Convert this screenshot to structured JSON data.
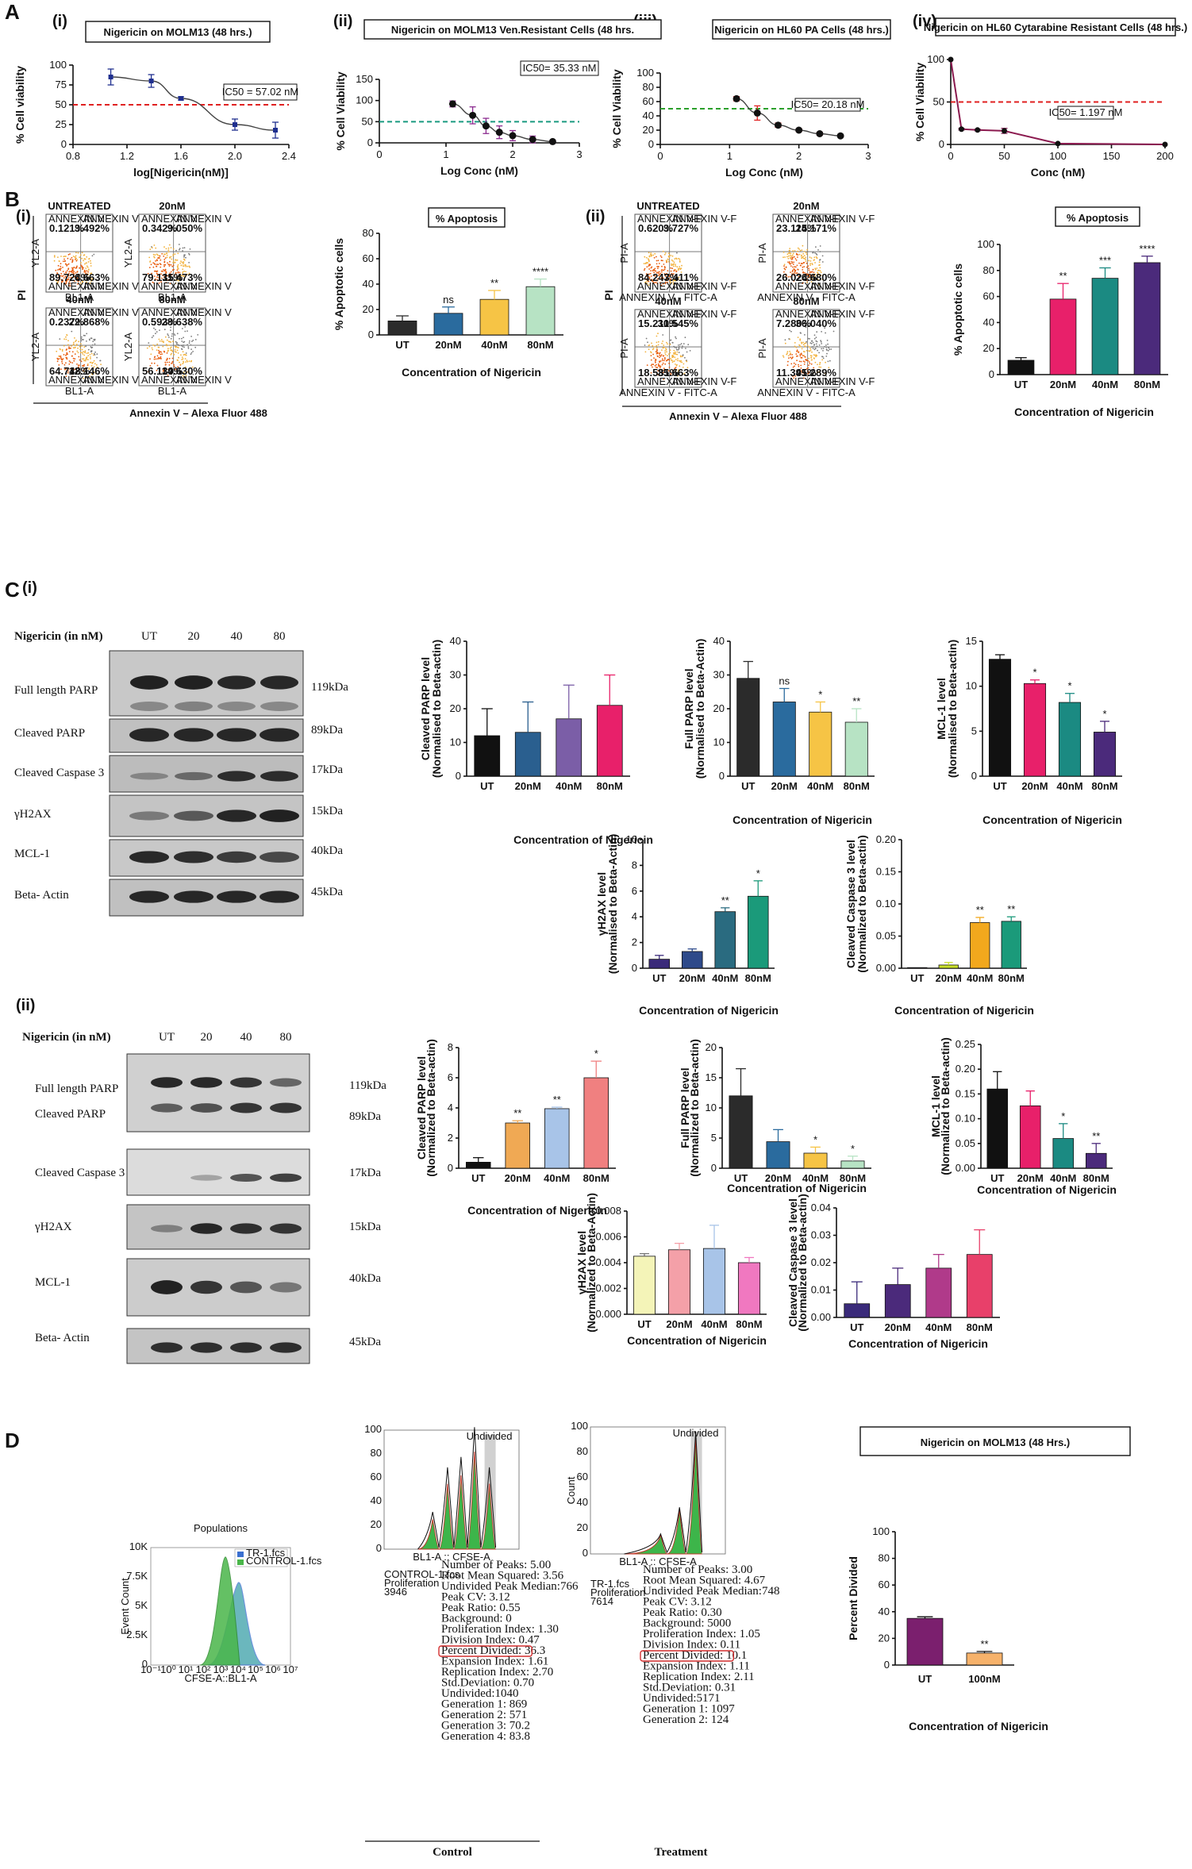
{
  "panel_letters": {
    "A": "A",
    "B": "B",
    "C": "C",
    "D": "D"
  },
  "panel_roman": {
    "a1": "(i)",
    "a2": "(ii)",
    "a3": "(iii)",
    "a4": "(iv)",
    "b1": "(i)",
    "b2": "(ii)",
    "c1": "(i)",
    "c2": "(ii)"
  },
  "chart_data": [
    {
      "id": "A_i",
      "type": "line",
      "title": "Nigericin on MOLM13 (48 hrs.)",
      "title_color": "#1f2f8f",
      "xlabel": "log[Nigericin(nM)]",
      "ylabel": "% Cell viability",
      "xlim": [
        0.8,
        2.4
      ],
      "ylim": [
        0,
        100
      ],
      "xticks": [
        "0.8",
        "1.2",
        "1.6",
        "2.0",
        "2.4"
      ],
      "yticks": [
        "0",
        "25",
        "50",
        "75",
        "100"
      ],
      "annotation": "IC50 = 57.02 nM",
      "threshold": 50,
      "threshold_color": "#e02020",
      "x": [
        1.08,
        1.38,
        1.6,
        2.0,
        2.3
      ],
      "y": [
        85,
        80,
        58,
        25,
        18
      ],
      "err": [
        10,
        8,
        2,
        7,
        10
      ]
    },
    {
      "id": "A_ii",
      "type": "line",
      "title": "Nigericin on MOLM13 Ven.Resistant Cells (48 hrs.",
      "title_color": "#8b2a8f",
      "xlabel": "Log Conc (nM)",
      "ylabel": "% Cell Viability",
      "xlim": [
        0,
        3
      ],
      "ylim": [
        0,
        150
      ],
      "xticks": [
        "0",
        "1",
        "2",
        "3"
      ],
      "yticks": [
        "0",
        "50",
        "100",
        "150"
      ],
      "annotation": "IC50= 35.33 nM",
      "threshold": 50,
      "threshold_color": "#1a9a80",
      "x": [
        1.1,
        1.4,
        1.6,
        1.8,
        2.0,
        2.3,
        2.6
      ],
      "y": [
        92,
        65,
        40,
        25,
        17,
        8,
        3
      ],
      "err": [
        7,
        20,
        18,
        15,
        12,
        8,
        3
      ]
    },
    {
      "id": "A_iii",
      "type": "line",
      "title": "Nigericin on HL60 PA Cells (48 hrs.)",
      "title_color": "#e02020",
      "xlabel": "Log Conc (nM)",
      "ylabel": "% Cell Viability",
      "xlim": [
        0,
        3
      ],
      "ylim": [
        0,
        100
      ],
      "xticks": [
        "0",
        "1",
        "2",
        "3"
      ],
      "yticks": [
        "0",
        "20",
        "40",
        "60",
        "80",
        "100"
      ],
      "annotation": "IC50= 20.18 nM",
      "threshold": 50,
      "threshold_color": "#2ca02c",
      "x": [
        1.1,
        1.4,
        1.7,
        2.0,
        2.3,
        2.6
      ],
      "y": [
        64,
        44,
        27,
        20,
        15,
        12
      ],
      "err": [
        3,
        10,
        3,
        2,
        2,
        1
      ]
    },
    {
      "id": "A_iv",
      "type": "line",
      "title": "Nigericin on HL60 Cytarabine Resistant Cells (48 hrs.)",
      "title_color": "#c2185b",
      "xlabel": "Conc (nM)",
      "ylabel": "% Cell Viability",
      "xlim": [
        0,
        200
      ],
      "ylim": [
        0,
        100
      ],
      "xticks": [
        "0",
        "50",
        "100",
        "150",
        "200"
      ],
      "yticks": [
        "0",
        "50",
        "100"
      ],
      "annotation": "IC50= 1.197 nM",
      "threshold": 50,
      "threshold_color": "#e02020",
      "x": [
        0,
        10,
        25,
        50,
        100,
        200
      ],
      "y": [
        100,
        18,
        17,
        16,
        1,
        0
      ],
      "err": [
        0,
        1,
        1,
        3,
        0,
        0
      ]
    },
    {
      "id": "B_i",
      "type": "bar",
      "title": "% Apoptosis",
      "xlabel": "Concentration of Nigericin",
      "ylabel": "% Apoptotic cells",
      "categories": [
        "UT",
        "20nM",
        "40nM",
        "80nM"
      ],
      "values": [
        11,
        17,
        28,
        38
      ],
      "err": [
        4,
        5,
        7,
        6
      ],
      "sig": [
        "",
        "ns",
        "**",
        "****"
      ],
      "colors": [
        "#2b2b2b",
        "#2a6b9e",
        "#f6c445",
        "#b7e3c4"
      ],
      "ylim": [
        0,
        80
      ],
      "yticks": [
        "0",
        "20",
        "40",
        "60",
        "80"
      ]
    },
    {
      "id": "B_ii",
      "type": "bar",
      "title": "% Apoptosis",
      "xlabel": "Concentration of Nigericin",
      "ylabel": "% Apoptotic cells",
      "categories": [
        "UT",
        "20nM",
        "40nM",
        "80nM"
      ],
      "values": [
        11,
        58,
        74,
        86
      ],
      "err": [
        2,
        12,
        8,
        5
      ],
      "sig": [
        "",
        "**",
        "***",
        "****"
      ],
      "colors": [
        "#111111",
        "#e8206a",
        "#1b8a82",
        "#4b2a7b"
      ],
      "ylim": [
        0,
        100
      ],
      "yticks": [
        "0",
        "20",
        "40",
        "60",
        "80",
        "100"
      ]
    },
    {
      "id": "C_i_1",
      "type": "bar",
      "ylabel": "Cleaved PARP level\n(Normalised to Beta-actin)",
      "xlabel": "Concentration of Nigericin",
      "categories": [
        "UT",
        "20nM",
        "40nM",
        "80nM"
      ],
      "values": [
        12,
        13,
        17,
        21
      ],
      "err": [
        8,
        9,
        10,
        9
      ],
      "sig": [
        "",
        "",
        "",
        ""
      ],
      "colors": [
        "#111111",
        "#2a5f8f",
        "#7b5ea7",
        "#e8206a"
      ],
      "ylim": [
        0,
        40
      ],
      "yticks": [
        "0",
        "10",
        "20",
        "30",
        "40"
      ]
    },
    {
      "id": "C_i_2",
      "type": "bar",
      "ylabel": "Full PARP level\n(Normalised to Beta-Actin)",
      "xlabel": "Concentration of Nigericin",
      "categories": [
        "UT",
        "20nM",
        "40nM",
        "80nM"
      ],
      "values": [
        29,
        22,
        19,
        16
      ],
      "err": [
        5,
        4,
        3,
        4
      ],
      "sig": [
        "",
        "ns",
        "*",
        "**"
      ],
      "colors": [
        "#2b2b2b",
        "#2a6b9e",
        "#f6c445",
        "#b7e3c4"
      ],
      "ylim": [
        0,
        40
      ],
      "yticks": [
        "0",
        "10",
        "20",
        "30",
        "40"
      ]
    },
    {
      "id": "C_i_3",
      "type": "bar",
      "ylabel": "MCL-1 level\n(Normalised to Beta-actin)",
      "xlabel": "Concentration of Nigericin",
      "categories": [
        "UT",
        "20nM",
        "40nM",
        "80nM"
      ],
      "values": [
        13,
        10.3,
        8.2,
        4.9
      ],
      "err": [
        0.5,
        0.4,
        1,
        1.2
      ],
      "sig": [
        "",
        "*",
        "*",
        "*"
      ],
      "colors": [
        "#111111",
        "#e8206a",
        "#1b8a82",
        "#4b2a7b"
      ],
      "ylim": [
        0,
        15
      ],
      "yticks": [
        "0",
        "5",
        "10",
        "15"
      ]
    },
    {
      "id": "C_i_4",
      "type": "bar",
      "ylabel": "γH2AX level\n(Normalised to Beta-Actin)",
      "xlabel": "Concentration of Nigericin",
      "categories": [
        "UT",
        "20nM",
        "40nM",
        "80nM"
      ],
      "values": [
        0.7,
        1.3,
        4.4,
        5.6
      ],
      "err": [
        0.3,
        0.2,
        0.3,
        1.2
      ],
      "sig": [
        "",
        "",
        "**",
        "*"
      ],
      "colors": [
        "#3a2a7a",
        "#2e4a8a",
        "#2a6b80",
        "#1b9a7a"
      ],
      "ylim": [
        0,
        10
      ],
      "yticks": [
        "0",
        "2",
        "4",
        "6",
        "8",
        "10"
      ]
    },
    {
      "id": "C_i_5",
      "type": "bar",
      "ylabel": "Cleaved Caspase 3 level\n(Normalized to Beta-actin)",
      "xlabel": "Concentration of Nigericin",
      "categories": [
        "UT",
        "20nM",
        "40nM",
        "80nM"
      ],
      "values": [
        0.001,
        0.005,
        0.071,
        0.073
      ],
      "err": [
        0,
        0.004,
        0.008,
        0.007
      ],
      "sig": [
        "",
        "",
        "**",
        "**"
      ],
      "colors": [
        "#3a2a7a",
        "#c9e02a",
        "#f2a81d",
        "#1b9a7a"
      ],
      "ylim": [
        0,
        0.2
      ],
      "yticks": [
        "0.00",
        "0.05",
        "0.10",
        "0.15",
        "0.20"
      ]
    },
    {
      "id": "C_ii_1",
      "type": "bar",
      "ylabel": "Cleaved PARP level\n(Normalized to Beta-actin)",
      "xlabel": "Concentration of Nigericin",
      "categories": [
        "UT",
        "20nM",
        "40nM",
        "80nM"
      ],
      "values": [
        0.4,
        3.0,
        3.95,
        6.0
      ],
      "err": [
        0.3,
        0.15,
        0.1,
        1.1
      ],
      "sig": [
        "",
        "**",
        "**",
        "*"
      ],
      "colors": [
        "#111111",
        "#f0a954",
        "#a8c4e8",
        "#f08080"
      ],
      "ylim": [
        0,
        8
      ],
      "yticks": [
        "0",
        "2",
        "4",
        "6",
        "8"
      ]
    },
    {
      "id": "C_ii_2",
      "type": "bar",
      "ylabel": "Full PARP level\n(Normalized to Beta-actin)",
      "xlabel": "Concentration of Nigericin",
      "categories": [
        "UT",
        "20nM",
        "40nM",
        "80nM"
      ],
      "values": [
        12,
        4.4,
        2.5,
        1.2
      ],
      "err": [
        4.5,
        2,
        1,
        0.8
      ],
      "sig": [
        "",
        "",
        "*",
        "*"
      ],
      "colors": [
        "#2b2b2b",
        "#2a6b9e",
        "#f6c445",
        "#b7e3c4"
      ],
      "ylim": [
        0,
        20
      ],
      "yticks": [
        "0",
        "5",
        "10",
        "15",
        "20"
      ]
    },
    {
      "id": "C_ii_3",
      "type": "bar",
      "ylabel": "MCL-1 level\n(Normalized to Beta-actin)",
      "xlabel": "Concentration of Nigericin",
      "categories": [
        "UT",
        "20nM",
        "40nM",
        "80nM"
      ],
      "values": [
        0.16,
        0.126,
        0.06,
        0.03
      ],
      "err": [
        0.035,
        0.03,
        0.03,
        0.02
      ],
      "sig": [
        "",
        "",
        "*",
        "**"
      ],
      "colors": [
        "#111111",
        "#e8206a",
        "#1b8a82",
        "#4b2a7b"
      ],
      "ylim": [
        0,
        0.25
      ],
      "yticks": [
        "0.00",
        "0.05",
        "0.10",
        "0.15",
        "0.20",
        "0.25"
      ]
    },
    {
      "id": "C_ii_4",
      "type": "bar",
      "ylabel": "γH2AX level\n(Normalized to Beta-Actin)",
      "xlabel": "Concentration of Nigericin",
      "categories": [
        "UT",
        "20nM",
        "40nM",
        "80nM"
      ],
      "values": [
        0.0045,
        0.005,
        0.0051,
        0.004
      ],
      "err": [
        0.0002,
        0.0005,
        0.0018,
        0.0004
      ],
      "sig": [
        "",
        "",
        "",
        ""
      ],
      "colors": [
        "#f4f4b8",
        "#f4a0a8",
        "#a8c4e8",
        "#f078c0"
      ],
      "ylim": [
        0,
        0.008
      ],
      "yticks": [
        "0.000",
        "0.002",
        "0.004",
        "0.006",
        "0.008"
      ]
    },
    {
      "id": "C_ii_5",
      "type": "bar",
      "ylabel": "Cleaved Caspase 3 level\n(Normalized to Beta-actin)",
      "xlabel": "Concentration of Nigericin",
      "categories": [
        "UT",
        "20nM",
        "40nM",
        "80nM"
      ],
      "values": [
        0.005,
        0.012,
        0.018,
        0.023
      ],
      "err": [
        0.008,
        0.006,
        0.005,
        0.009
      ],
      "sig": [
        "",
        "",
        "",
        ""
      ],
      "colors": [
        "#3a2a7a",
        "#4b2a7b",
        "#b03a8a",
        "#e8406a"
      ],
      "ylim": [
        0,
        0.04
      ],
      "yticks": [
        "0.00",
        "0.01",
        "0.02",
        "0.03",
        "0.04"
      ]
    },
    {
      "id": "D_bar",
      "type": "bar",
      "title": "Nigericin on MOLM13 (48 Hrs.)",
      "xlabel": "Concentration of Nigericin",
      "ylabel": "Percent Divided",
      "categories": [
        "UT",
        "100nM"
      ],
      "values": [
        35,
        9
      ],
      "err": [
        1.2,
        1.2
      ],
      "sig": [
        "",
        "**"
      ],
      "colors": [
        "#7b1f6e",
        "#f6b26b"
      ],
      "ylim": [
        0,
        100
      ],
      "yticks": [
        "0",
        "20",
        "40",
        "60",
        "80",
        "100"
      ]
    }
  ],
  "flow_b1": {
    "plots": [
      {
        "title": "UNTREATED",
        "q": [
          "0.121%",
          "3.492%",
          "89.724%",
          "6.663%"
        ]
      },
      {
        "title": "20nM",
        "q": [
          "0.342%",
          "9.050%",
          "79.135%",
          "11.473%"
        ]
      },
      {
        "title": "40nM",
        "q": [
          "0.237%",
          "22.868%",
          "64.748%",
          "12.146%"
        ]
      },
      {
        "title": "80nM",
        "q": [
          "0.593%",
          "28.638%",
          "56.139%",
          "14.630%"
        ]
      }
    ],
    "qlabel": "ANNEXIN V",
    "y_axis": "PI",
    "x_axis": "Annexin V – Alexa Fluor 488",
    "ylab": "YL2-A",
    "xlab": "BL1-A"
  },
  "flow_b2": {
    "plots": [
      {
        "title": "UNTREATED",
        "q": [
          "0.620%",
          "3.727%",
          "84.243%",
          "7.411%"
        ]
      },
      {
        "title": "20nM",
        "q": [
          "23.115%",
          "24.171%",
          "26.024%",
          "26.680%"
        ]
      },
      {
        "title": "40nM",
        "q": [
          "15.211%",
          "30.545%",
          "18.581%",
          "35.663%"
        ]
      },
      {
        "title": "80nM",
        "q": [
          "7.280%",
          "36.040%",
          "11.391%",
          "45.289%"
        ]
      }
    ],
    "qlabel": "ANNEXIN V-F",
    "y_axis": "PI",
    "x_axis": "Annexin V – Alexa Fluor 488",
    "ylab": "PI-A",
    "xlab": "ANNEXIN V - FITC-A"
  },
  "blot_c1": {
    "header": "Nigericin (in nM)",
    "lanes": [
      "UT",
      "20",
      "40",
      "80"
    ],
    "rows": [
      {
        "label": "Full length PARP",
        "kda": "119kDa"
      },
      {
        "label": "Cleaved PARP",
        "kda": "89kDa"
      },
      {
        "label": "Cleaved Caspase 3",
        "kda": "17kDa"
      },
      {
        "label": "γH2AX",
        "kda": "15kDa"
      },
      {
        "label": "MCL-1",
        "kda": "40kDa"
      },
      {
        "label": "Beta- Actin",
        "kda": "45kDa"
      }
    ]
  },
  "blot_c2": {
    "header": "Nigericin (in nM)",
    "lanes": [
      "UT",
      "20",
      "40",
      "80"
    ],
    "rows": [
      {
        "label": "Full length PARP",
        "kda": "119kDa"
      },
      {
        "label": "Cleaved PARP",
        "kda": "89kDa"
      },
      {
        "label": "Cleaved Caspase 3",
        "kda": "17kDa"
      },
      {
        "label": "γH2AX",
        "kda": "15kDa"
      },
      {
        "label": "MCL-1",
        "kda": "40kDa"
      },
      {
        "label": "Beta- Actin",
        "kda": "45kDa"
      }
    ]
  },
  "hist_overlay": {
    "title": "Populations",
    "legend": [
      "TR-1.fcs",
      "CONTROL-1.fcs"
    ],
    "legend_colors": [
      "#3a6fd0",
      "#49b649"
    ],
    "ylabel": "Event Count",
    "xlabel": "CFSE-A::BL1-A",
    "yticks": [
      "0",
      "2.5K",
      "5K",
      "7.5K",
      "10K"
    ],
    "xticks": [
      "10⁻¹",
      "10⁰",
      "10¹",
      "10²",
      "10³",
      "10⁴",
      "10⁵",
      "10⁶",
      "10⁷"
    ]
  },
  "prolif_control": {
    "xlabel": "BL1-A :: CFSE-A",
    "gate": "Undivided",
    "yticks": [
      "0",
      "20",
      "40",
      "60",
      "80",
      "100"
    ],
    "side": [
      "CONTROL-1.fcs",
      "Proliferation",
      "3946"
    ],
    "stats": [
      "Number of Peaks: 5.00",
      "Root Mean Squared: 3.56",
      "Undivided Peak Median:766",
      "Peak CV: 3.12",
      "Peak Ratio: 0.55",
      "Background: 0",
      "Proliferation Index: 1.30",
      "Division Index: 0.47",
      "Percent Divided: 36.3",
      "Expansion Index: 1.61",
      "Replication Index: 2.70",
      "Std.Deviation: 0.70",
      "Undivided:1040",
      "Generation 1: 869",
      "Generation 2: 571",
      "Generation 3: 70.2",
      "Generation 4: 83.8"
    ],
    "caption": "Control"
  },
  "prolif_treat": {
    "xlabel": "BL1-A :: CFSE-A",
    "gate": "Undivided",
    "ylabel": "Count",
    "yticks": [
      "0",
      "20",
      "40",
      "60",
      "80",
      "100"
    ],
    "side": [
      "TR-1.fcs",
      "Proliferation",
      "7614"
    ],
    "stats": [
      "Number of Peaks: 3.00",
      "Root Mean Squared: 4.67",
      "Undivided Peak Median:748",
      "Peak CV: 3.12",
      "Peak Ratio: 0.30",
      "Background: 5000",
      "Proliferation Index: 1.05",
      "Division Index: 0.11",
      "Percent Divided: 10.1",
      "Expansion Index: 1.11",
      "Replication Index: 2.11",
      "Std.Deviation: 0.31",
      "Undivided:5171",
      "Generation 1: 1097",
      "Generation 2: 124"
    ],
    "caption": "Treatment"
  }
}
